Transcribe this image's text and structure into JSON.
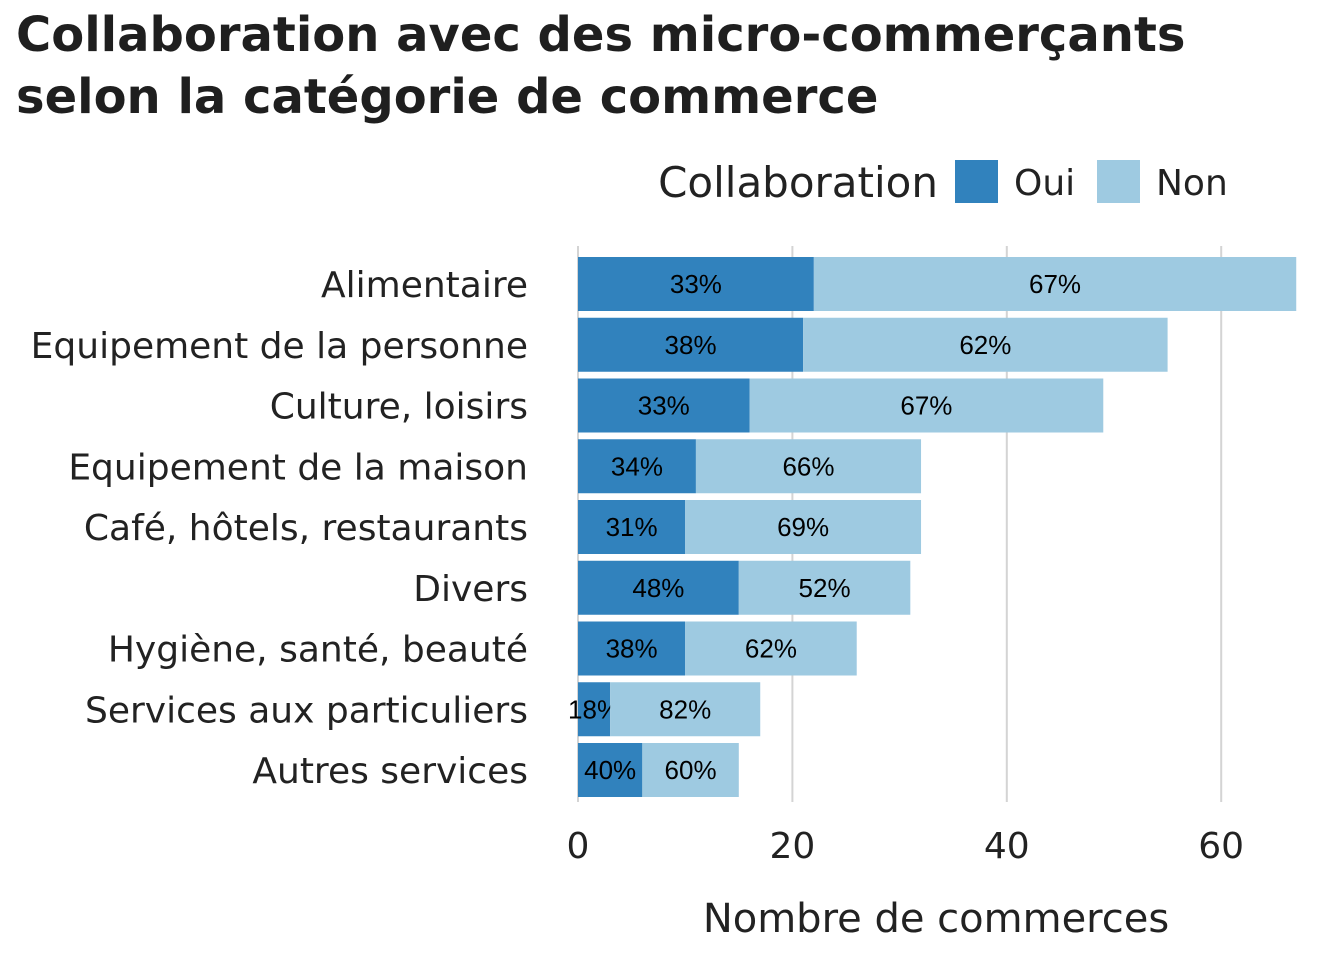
{
  "chart_data": {
    "type": "bar",
    "orientation": "horizontal",
    "stacked": true,
    "title": [
      "Collaboration avec des micro-commerçants",
      "selon la catégorie de commerce"
    ],
    "xlabel": "Nombre de commerces",
    "ylabel": "",
    "xlim": [
      0,
      68
    ],
    "xticks": [
      0,
      20,
      40,
      60
    ],
    "grid": true,
    "legend": {
      "title": "Collaboration",
      "placement": "top"
    },
    "categories": [
      "Alimentaire",
      "Equipement de la personne",
      "Culture, loisirs",
      "Equipement de la maison",
      "Café, hôtels, restaurants",
      "Divers",
      "Hygiène, santé, beauté",
      "Services aux particuliers",
      "Autres services"
    ],
    "series": [
      {
        "name": "Oui",
        "color": "#3182bd",
        "values": [
          22,
          21,
          16,
          11,
          10,
          15,
          10,
          3,
          6
        ],
        "labels": [
          "33%",
          "38%",
          "33%",
          "34%",
          "31%",
          "48%",
          "38%",
          "18%",
          "40%"
        ]
      },
      {
        "name": "Non",
        "color": "#9ecae1",
        "values": [
          45,
          34,
          33,
          21,
          22,
          16,
          16,
          14,
          9
        ],
        "labels": [
          "67%",
          "62%",
          "67%",
          "66%",
          "69%",
          "52%",
          "62%",
          "82%",
          "60%"
        ]
      }
    ]
  }
}
